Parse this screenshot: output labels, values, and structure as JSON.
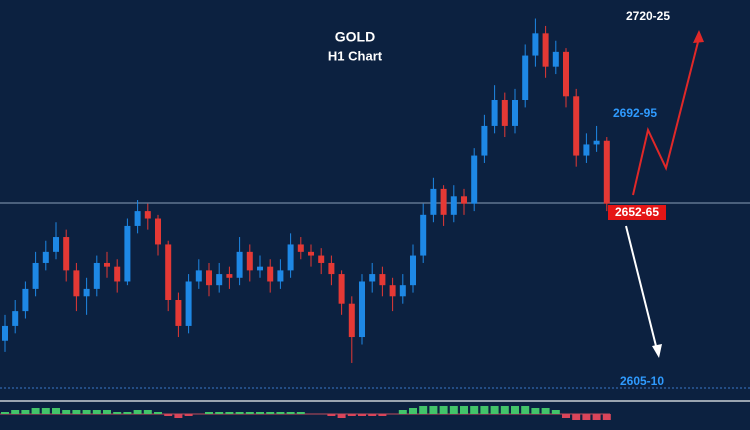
{
  "chart_data": {
    "type": "candlestick",
    "title": "GOLD",
    "subtitle": "H1 Chart",
    "annotations": [
      "2720-25",
      "2692-95",
      "2652-65",
      "2605-10"
    ],
    "ylim": [
      2602,
      2710
    ],
    "up_color": "#1e88e5",
    "down_color": "#e53935",
    "open": [
      2618,
      2622,
      2626,
      2632,
      2639,
      2642,
      2646,
      2637,
      2630,
      2632,
      2639,
      2638,
      2634,
      2649,
      2653,
      2651,
      2644,
      2629,
      2622,
      2634,
      2637,
      2633,
      2636,
      2635,
      2642,
      2637,
      2638,
      2634,
      2637,
      2644,
      2642,
      2641,
      2639,
      2636,
      2628,
      2619,
      2634,
      2636,
      2633,
      2630,
      2633,
      2641,
      2652,
      2659,
      2652,
      2657,
      2655,
      2668,
      2676,
      2683,
      2676,
      2683,
      2695,
      2701,
      2692,
      2696,
      2684,
      2668,
      2671,
      2672
    ],
    "high": [
      2625,
      2629,
      2634,
      2642,
      2645,
      2650,
      2648,
      2639,
      2635,
      2641,
      2642,
      2640,
      2651,
      2656,
      2655,
      2652,
      2645,
      2631,
      2636,
      2640,
      2639,
      2639,
      2638,
      2646,
      2644,
      2641,
      2640,
      2640,
      2647,
      2646,
      2644,
      2643,
      2641,
      2637,
      2630,
      2636,
      2639,
      2638,
      2635,
      2636,
      2644,
      2655,
      2662,
      2660,
      2660,
      2659,
      2670,
      2679,
      2687,
      2685,
      2686,
      2698,
      2705,
      2703,
      2699,
      2697,
      2686,
      2674,
      2676,
      2673
    ],
    "low": [
      2615,
      2620,
      2624,
      2630,
      2637,
      2640,
      2634,
      2626,
      2625,
      2630,
      2635,
      2631,
      2633,
      2647,
      2648,
      2641,
      2626,
      2619,
      2620,
      2632,
      2630,
      2631,
      2632,
      2633,
      2634,
      2635,
      2631,
      2632,
      2635,
      2640,
      2638,
      2636,
      2633,
      2625,
      2612,
      2617,
      2631,
      2630,
      2626,
      2628,
      2631,
      2639,
      2650,
      2649,
      2650,
      2652,
      2653,
      2666,
      2674,
      2673,
      2674,
      2681,
      2692,
      2689,
      2690,
      2681,
      2665,
      2666,
      2669,
      2653
    ],
    "close": [
      2622,
      2626,
      2632,
      2639,
      2642,
      2646,
      2637,
      2630,
      2632,
      2639,
      2638,
      2634,
      2649,
      2653,
      2651,
      2644,
      2629,
      2622,
      2634,
      2637,
      2633,
      2636,
      2635,
      2642,
      2637,
      2638,
      2634,
      2637,
      2644,
      2642,
      2641,
      2639,
      2636,
      2628,
      2619,
      2634,
      2636,
      2633,
      2630,
      2633,
      2641,
      2652,
      2659,
      2652,
      2657,
      2655,
      2668,
      2676,
      2683,
      2676,
      2683,
      2695,
      2701,
      2692,
      2696,
      2684,
      2668,
      2671,
      2672,
      2655
    ],
    "oscillator": {
      "ylim": [
        -5,
        5
      ],
      "pos_color": "#43c46a",
      "neg_color": "#d9455a",
      "values": [
        1,
        2,
        2,
        3,
        3,
        3,
        2,
        2,
        2,
        2,
        2,
        1,
        1,
        2,
        2,
        1,
        -1,
        -2,
        -1,
        0,
        1,
        1,
        1,
        1,
        1,
        1,
        1,
        1,
        1,
        1,
        0,
        0,
        -1,
        -2,
        -1,
        -1,
        -1,
        -1,
        0,
        2,
        3,
        4,
        4,
        4,
        4,
        4,
        4,
        4,
        4,
        4,
        4,
        4,
        3,
        3,
        2,
        -2,
        -3,
        -3,
        -3,
        -3
      ]
    }
  }
}
